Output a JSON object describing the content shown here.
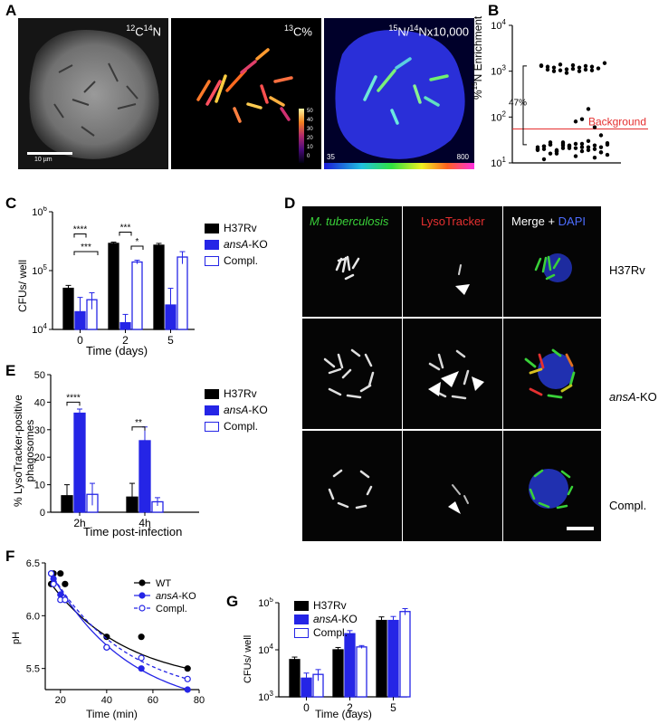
{
  "panels": {
    "a": {
      "letter": "A",
      "label1_sup1": "12",
      "label1_el1": "C",
      "label1_sup2": "14",
      "label1_el2": "N",
      "label2_sup": "13",
      "label2_rest": "C%",
      "label3_sup1": "15",
      "label3_mid": "N/",
      "label3_sup2": "14",
      "label3_rest": "Nx10,000",
      "scalebar_label": "10 µm",
      "colorbar_ticks": [
        "50",
        "40",
        "30",
        "20",
        "10",
        "0"
      ],
      "cb_min": "35",
      "cb_max": "800"
    },
    "b": {
      "letter": "B",
      "ylabel_prefix": "%",
      "ylabel_sup": "15",
      "ylabel_rest": "N Enrichment",
      "yticks": [
        "10",
        "10",
        "10",
        "10"
      ],
      "ytick_exps": [
        "4",
        "3",
        "2",
        "1"
      ],
      "bracket_label": "47%",
      "background_label": "Background",
      "background_color": "#e53030"
    },
    "c": {
      "letter": "C",
      "ylabel": "CFUs/ well",
      "xlabel": "Time (days)",
      "yticks": [
        "10",
        "10",
        "10"
      ],
      "ytick_exps": [
        "6",
        "5",
        "4"
      ],
      "sig": [
        "****",
        "***",
        "***",
        "*"
      ]
    },
    "d": {
      "letter": "D",
      "col1": "M. tuberculosis",
      "col2": "LysoTracker",
      "col3a": "Merge + ",
      "col3b": "DAPI",
      "row1": "H37Rv",
      "row2_italic": "ansA",
      "row2_rest": "-KO",
      "row3": "Compl."
    },
    "e": {
      "letter": "E",
      "ylabel1": "% LysoTracker-positive",
      "ylabel2": "phagosomes",
      "xlabel": "Time post-infection",
      "sig": [
        "****",
        "**"
      ]
    },
    "f": {
      "letter": "F",
      "ylabel": "pH",
      "xlabel": "Time (min)",
      "legend_wt": "WT",
      "legend_ko_italic": "ansA",
      "legend_ko_rest": "-KO",
      "legend_compl": "Compl."
    },
    "g": {
      "letter": "G",
      "ylabel": "CFUs/ well",
      "xlabel": "Time (days)",
      "yticks": [
        "10",
        "10",
        "10"
      ],
      "ytick_exps": [
        "5",
        "4",
        "3"
      ]
    }
  },
  "legend": {
    "h37rv": "H37Rv",
    "ko_italic": "ansA",
    "ko_rest": "-KO",
    "compl": "Compl."
  },
  "colors": {
    "h37rv": "#000000",
    "ko": "#2525e6",
    "compl": "#ffffff",
    "compl_edge": "#2525e6",
    "green": "#39d139",
    "red": "#e53030",
    "blue": "#4d6dff"
  },
  "chart_data": [
    {
      "panel": "B",
      "type": "scatter",
      "yscale": "log",
      "ylim": [
        10,
        10000
      ],
      "background_level": 55,
      "points_high": [
        1300,
        1250,
        1200,
        1400,
        1100,
        1350,
        1200,
        1300,
        1250,
        1150,
        1500,
        1600,
        1300,
        1200,
        1250,
        1100,
        1350,
        1200,
        1300,
        1250
      ],
      "points_low": [
        22,
        20,
        25,
        18,
        28,
        23,
        21,
        26,
        19,
        24,
        22,
        27,
        20,
        23,
        25,
        18,
        21,
        24,
        26,
        22,
        30,
        20,
        17,
        15,
        19,
        23,
        28,
        16,
        24,
        21,
        14,
        18,
        22,
        13,
        17,
        25,
        20,
        12,
        16,
        19,
        26,
        23,
        80,
        90,
        150,
        60,
        40
      ]
    },
    {
      "panel": "C",
      "type": "bar",
      "yscale": "log",
      "ylim": [
        10000,
        1000000
      ],
      "categories": [
        "0",
        "2",
        "5"
      ],
      "series": [
        {
          "name": "H37Rv",
          "values": [
            50000,
            290000,
            270000
          ],
          "err": [
            6000,
            15000,
            20000
          ]
        },
        {
          "name": "ansA-KO",
          "values": [
            20000,
            13000,
            26000
          ],
          "err": [
            15000,
            5000,
            24000
          ]
        },
        {
          "name": "Compl.",
          "values": [
            32000,
            140000,
            170000
          ],
          "err": [
            10000,
            10000,
            40000
          ]
        }
      ]
    },
    {
      "panel": "E",
      "type": "bar",
      "ylim": [
        0,
        50
      ],
      "yticks": [
        0,
        10,
        20,
        30,
        40,
        50
      ],
      "categories": [
        "2h",
        "4h"
      ],
      "series": [
        {
          "name": "H37Rv",
          "values": [
            6,
            5.5
          ],
          "err": [
            4,
            5
          ]
        },
        {
          "name": "ansA-KO",
          "values": [
            36,
            26
          ],
          "err": [
            1.5,
            5
          ]
        },
        {
          "name": "Compl.",
          "values": [
            6.5,
            3.8
          ],
          "err": [
            4,
            1.5
          ]
        }
      ]
    },
    {
      "panel": "F",
      "type": "line",
      "ylim": [
        5.3,
        6.5
      ],
      "yticks": [
        5.5,
        6.0,
        6.5
      ],
      "xlim": [
        15,
        80
      ],
      "xticks": [
        20,
        40,
        60,
        80
      ],
      "series": [
        {
          "name": "WT",
          "x": [
            16,
            17,
            20,
            22,
            40,
            55,
            75
          ],
          "y": [
            6.3,
            6.4,
            6.4,
            6.3,
            5.8,
            5.8,
            5.5
          ]
        },
        {
          "name": "ansA-KO",
          "x": [
            16,
            17,
            20,
            22,
            40,
            55,
            75
          ],
          "y": [
            6.4,
            6.35,
            6.2,
            6.15,
            5.7,
            5.5,
            5.3
          ]
        },
        {
          "name": "Compl.",
          "x": [
            16,
            17,
            20,
            22,
            40,
            55,
            75
          ],
          "y": [
            6.4,
            6.3,
            6.15,
            6.15,
            5.7,
            5.6,
            5.4
          ]
        }
      ]
    },
    {
      "panel": "G",
      "type": "bar",
      "yscale": "log",
      "ylim": [
        1000,
        100000
      ],
      "categories": [
        "0",
        "2",
        "5"
      ],
      "series": [
        {
          "name": "H37Rv",
          "values": [
            6200,
            10000,
            42000
          ],
          "err": [
            800,
            1200,
            8000
          ]
        },
        {
          "name": "ansA-KO",
          "values": [
            2500,
            22000,
            42000
          ],
          "err": [
            700,
            3500,
            9000
          ]
        },
        {
          "name": "Compl.",
          "values": [
            3000,
            11500,
            65000
          ],
          "err": [
            800,
            800,
            10000
          ]
        }
      ]
    }
  ]
}
